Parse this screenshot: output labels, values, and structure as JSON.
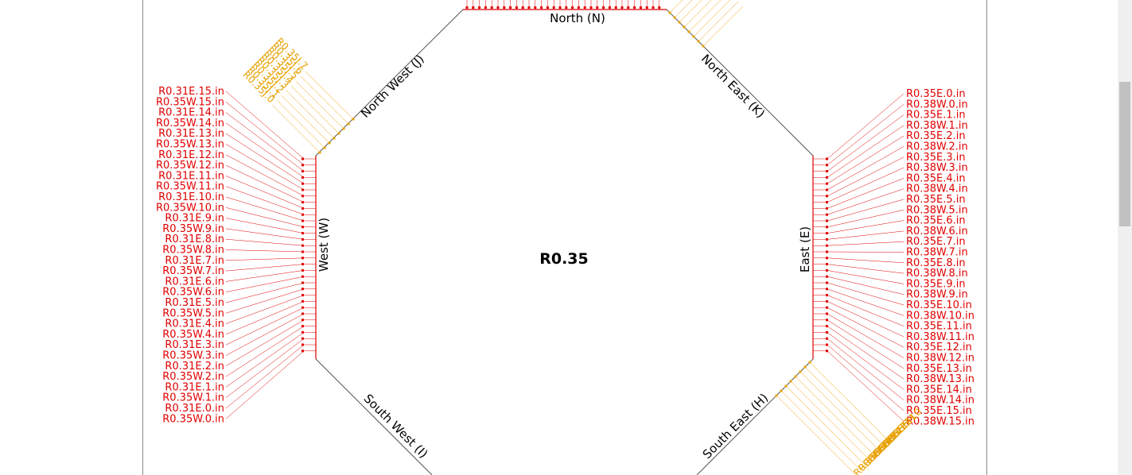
{
  "title": "R0.35",
  "sides": {
    "north": "North (N)",
    "north_east": "North East (K)",
    "east": "East (E)",
    "south_east": "South East (H)",
    "south_west": "South West (I)",
    "west": "West (W)",
    "north_west": "North West (J)"
  },
  "west_pins": [
    "R0.31E.15.in",
    "R0.35W.15.in",
    "R0.31E.14.in",
    "R0.35W.14.in",
    "R0.31E.13.in",
    "R0.35W.13.in",
    "R0.31E.12.in",
    "R0.35W.12.in",
    "R0.31E.11.in",
    "R0.35W.11.in",
    "R0.31E.10.in",
    "R0.35W.10.in",
    "R0.31E.9.in",
    "R0.35W.9.in",
    "R0.31E.8.in",
    "R0.35W.8.in",
    "R0.31E.7.in",
    "R0.35W.7.in",
    "R0.31E.6.in",
    "R0.35W.6.in",
    "R0.31E.5.in",
    "R0.35W.5.in",
    "R0.31E.4.in",
    "R0.35W.4.in",
    "R0.31E.3.in",
    "R0.35W.3.in",
    "R0.31E.2.in",
    "R0.35W.2.in",
    "R0.31E.1.in",
    "R0.35W.1.in",
    "R0.31E.0.in",
    "R0.35W.0.in"
  ],
  "east_pins": [
    "R0.35E.0.in",
    "R0.38W.0.in",
    "R0.35E.1.in",
    "R0.38W.1.in",
    "R0.35E.2.in",
    "R0.38W.2.in",
    "R0.35E.3.in",
    "R0.38W.3.in",
    "R0.35E.4.in",
    "R0.38W.4.in",
    "R0.35E.5.in",
    "R0.38W.5.in",
    "R0.35E.6.in",
    "R0.38W.6.in",
    "R0.35E.7.in",
    "R0.38W.7.in",
    "R0.35E.8.in",
    "R0.38W.8.in",
    "R0.35E.9.in",
    "R0.38W.9.in",
    "R0.35E.10.in",
    "R0.38W.10.in",
    "R0.35E.11.in",
    "R0.38W.11.in",
    "R0.35E.12.in",
    "R0.38W.12.in",
    "R0.35E.13.in",
    "R0.38W.13.in",
    "R0.35E.14.in",
    "R0.38W.14.in",
    "R0.35E.15.in",
    "R0.38W.15.in"
  ],
  "north_west_pins": [
    "R0.35J.0",
    "R0.35J.1",
    "R0.35J.2",
    "R0.35J.3",
    "R0.35J.4",
    "R0.35J.5",
    "R0.35J.6",
    "R0.35J.7"
  ],
  "south_east_pins": [
    "R0.35H.0",
    "R0.35H.1",
    "R0.35H.2",
    "R0.35H.3",
    "R0.35H.4",
    "R0.35H.5",
    "R0.35H.6",
    "R0.35H.7"
  ],
  "colors": {
    "pin": "#e00000",
    "special_pin": "#e8a000",
    "outline": "#555555",
    "text": "#000000"
  }
}
